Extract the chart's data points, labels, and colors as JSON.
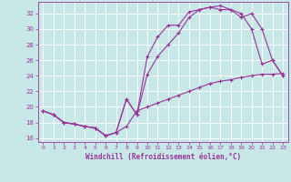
{
  "xlabel": "Windchill (Refroidissement éolien,°C)",
  "xlim": [
    -0.5,
    23.5
  ],
  "ylim": [
    15.5,
    33.5
  ],
  "yticks": [
    16,
    18,
    20,
    22,
    24,
    26,
    28,
    30,
    32
  ],
  "xticks": [
    0,
    1,
    2,
    3,
    4,
    5,
    6,
    7,
    8,
    9,
    10,
    11,
    12,
    13,
    14,
    15,
    16,
    17,
    18,
    19,
    20,
    21,
    22,
    23
  ],
  "bg_color": "#c8e8e8",
  "line_color": "#993399",
  "grid_color": "#aacccc",
  "line1_x": [
    0,
    1,
    2,
    3,
    4,
    5,
    6,
    7,
    8,
    9,
    10,
    11,
    12,
    13,
    14,
    15,
    16,
    17,
    18,
    19,
    20,
    21,
    22,
    23
  ],
  "line1_y": [
    19.5,
    19.0,
    18.0,
    17.8,
    17.5,
    17.3,
    16.3,
    16.7,
    21.0,
    19.0,
    26.5,
    29.0,
    30.5,
    30.5,
    32.2,
    32.5,
    32.8,
    32.5,
    32.5,
    32.0,
    30.0,
    25.5,
    26.0,
    24.0
  ],
  "line2_x": [
    0,
    1,
    2,
    3,
    4,
    5,
    6,
    7,
    8,
    9,
    10,
    11,
    12,
    13,
    14,
    15,
    16,
    17,
    18,
    19,
    20,
    21,
    22,
    23
  ],
  "line2_y": [
    19.5,
    19.0,
    18.0,
    17.8,
    17.5,
    17.3,
    16.3,
    16.7,
    21.0,
    19.0,
    24.2,
    26.5,
    28.0,
    29.5,
    31.5,
    32.5,
    32.8,
    33.0,
    32.5,
    31.5,
    32.0,
    30.0,
    26.0,
    24.0
  ],
  "line3_x": [
    0,
    1,
    2,
    3,
    4,
    5,
    6,
    7,
    8,
    9,
    10,
    11,
    12,
    13,
    14,
    15,
    16,
    17,
    18,
    19,
    20,
    21,
    22,
    23
  ],
  "line3_y": [
    19.5,
    19.0,
    18.0,
    17.8,
    17.5,
    17.3,
    16.3,
    16.7,
    17.5,
    19.5,
    20.0,
    20.5,
    21.0,
    21.5,
    22.0,
    22.5,
    23.0,
    23.3,
    23.5,
    23.8,
    24.0,
    24.2,
    24.2,
    24.3
  ]
}
